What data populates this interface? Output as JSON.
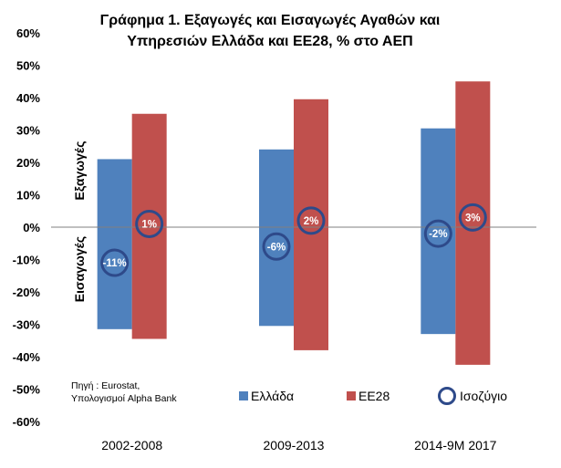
{
  "chart_data": {
    "type": "bar",
    "title_line1": "Γράφημα 1. Εξαγωγές και Εισαγωγές Αγαθών και",
    "title_line2": "Υπηρεσιών Ελλάδα και ΕΕ28,  %  στο ΑΕΠ",
    "categories": [
      "2002-2008",
      "2009-2013",
      "2014-9M 2017"
    ],
    "ylim": [
      -60,
      60
    ],
    "yticks": [
      60,
      50,
      40,
      30,
      20,
      10,
      0,
      -10,
      -20,
      -30,
      -40,
      -50,
      -60
    ],
    "ytick_labels": [
      "60%",
      "50%",
      "40%",
      "30%",
      "20%",
      "10%",
      "0%",
      "-10%",
      "-20%",
      "-30%",
      "-40%",
      "-50%",
      "-60%"
    ],
    "grid": false,
    "side_labels": {
      "exports": "Εξαγωγές",
      "imports": "Εισαγωγές"
    },
    "series": [
      {
        "name": "Ελλάδα",
        "color": "#4f81bd",
        "exports": [
          21,
          24,
          30.5
        ],
        "imports": [
          -31.5,
          -30.5,
          -33
        ]
      },
      {
        "name": "ΕΕ28",
        "color": "#c0504d",
        "exports": [
          35,
          39.5,
          45
        ],
        "imports": [
          -34.5,
          -38,
          -42.5
        ]
      }
    ],
    "balance": {
      "name": "Ισοζύγιο",
      "color": "#2e4a8a",
      "series": [
        {
          "labels": [
            "-11%",
            "-6%",
            "-2%"
          ],
          "values": [
            -11,
            -6,
            -2
          ]
        },
        {
          "labels": [
            "1%",
            "2%",
            "3%"
          ],
          "values": [
            1,
            2,
            3
          ]
        }
      ]
    },
    "source_line1": "Πηγή : Eurostat,",
    "source_line2": "Υπολογισμοί Alpha Bank",
    "legend": [
      "Ελλάδα",
      "ΕΕ28",
      "Ισοζύγιο"
    ]
  }
}
